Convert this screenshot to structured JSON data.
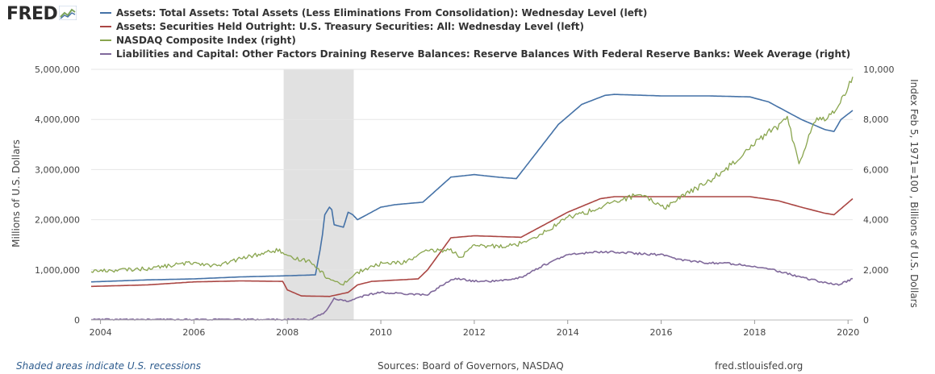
{
  "header": {
    "logo_text": "FRED"
  },
  "footer": {
    "recession_note": "Shaded areas indicate U.S. recessions",
    "sources": "Sources: Board of Governors, NASDAQ",
    "site": "fred.stlouisfed.org"
  },
  "colors": {
    "total_assets": "#4572a7",
    "treasury": "#aa4643",
    "nasdaq": "#89a54e",
    "reserves": "#80699b",
    "recession": "#e1e1e1",
    "grid": "#e6e6e6"
  },
  "chart_data": {
    "type": "line",
    "title": "",
    "xlabel": "",
    "ylabel_left": "Millions of U.S. Dollars",
    "ylabel_right": "Index Feb 5, 1971=100 , Billions of U.S. Dollars",
    "xlim": [
      2003.8,
      2020.1
    ],
    "ylim_left": [
      0,
      5000000
    ],
    "ylim_right": [
      0,
      10000
    ],
    "x_ticks": [
      "2004",
      "2006",
      "2008",
      "2010",
      "2012",
      "2014",
      "2016",
      "2018",
      "2020"
    ],
    "y_ticks_left": [
      "0",
      "1,000,000",
      "2,000,000",
      "3,000,000",
      "4,000,000",
      "5,000,000"
    ],
    "y_ticks_right": [
      "0",
      "2,000",
      "4,000",
      "6,000",
      "8,000",
      "10,000"
    ],
    "grid": true,
    "legend_position": "top",
    "recessions": [
      [
        2007.92,
        2009.42
      ]
    ],
    "series": [
      {
        "name": "Assets: Total Assets: Total Assets (Less Eliminations From Consolidation): Wednesday Level (left)",
        "axis": "left",
        "x": [
          2003.8,
          2005,
          2006,
          2007,
          2007.9,
          2008.6,
          2008.7,
          2008.75,
          2008.8,
          2008.9,
          2008.95,
          2009.0,
          2009.2,
          2009.3,
          2009.4,
          2009.5,
          2009.7,
          2010.0,
          2010.3,
          2010.9,
          2011.5,
          2012.0,
          2012.5,
          2012.9,
          2013.3,
          2013.8,
          2014.3,
          2014.8,
          2015.0,
          2016.0,
          2017.0,
          2017.9,
          2018.3,
          2019.0,
          2019.5,
          2019.7,
          2019.85,
          2020.1
        ],
        "y": [
          760000,
          800000,
          820000,
          860000,
          880000,
          900000,
          1400000,
          1700000,
          2100000,
          2250000,
          2200000,
          1900000,
          1850000,
          2150000,
          2100000,
          2000000,
          2100000,
          2250000,
          2300000,
          2350000,
          2850000,
          2900000,
          2850000,
          2820000,
          3300000,
          3900000,
          4300000,
          4480000,
          4500000,
          4470000,
          4470000,
          4450000,
          4350000,
          4000000,
          3800000,
          3760000,
          4000000,
          4180000
        ]
      },
      {
        "name": "Assets: Securities Held Outright: U.S. Treasury Securities: All: Wednesday Level (left)",
        "axis": "left",
        "x": [
          2003.8,
          2005,
          2006,
          2007,
          2007.9,
          2008.0,
          2008.3,
          2008.9,
          2009.3,
          2009.5,
          2009.8,
          2010.0,
          2010.8,
          2011.0,
          2011.5,
          2012.0,
          2013.0,
          2014.0,
          2014.7,
          2015.0,
          2017.9,
          2018.5,
          2019.0,
          2019.5,
          2019.7,
          2020.1
        ],
        "y": [
          670000,
          700000,
          760000,
          780000,
          770000,
          600000,
          480000,
          470000,
          550000,
          700000,
          770000,
          780000,
          820000,
          1000000,
          1640000,
          1680000,
          1650000,
          2150000,
          2420000,
          2460000,
          2460000,
          2380000,
          2250000,
          2130000,
          2100000,
          2420000
        ]
      },
      {
        "name": "NASDAQ Composite Index (right)",
        "axis": "right",
        "x": [
          2003.8,
          2004.5,
          2005.0,
          2006.0,
          2006.5,
          2007.0,
          2007.8,
          2008.0,
          2008.5,
          2008.9,
          2009.2,
          2009.5,
          2010.0,
          2010.5,
          2011.0,
          2011.5,
          2011.7,
          2012.0,
          2012.5,
          2012.9,
          2013.5,
          2014.0,
          2014.5,
          2015.0,
          2015.5,
          2016.1,
          2016.5,
          2017.0,
          2017.5,
          2018.0,
          2018.7,
          2018.95,
          2019.3,
          2019.6,
          2019.9,
          2020.1
        ],
        "y": [
          1950,
          2000,
          2050,
          2300,
          2150,
          2450,
          2800,
          2500,
          2350,
          1600,
          1450,
          1900,
          2250,
          2300,
          2750,
          2800,
          2500,
          2950,
          2950,
          3000,
          3500,
          4100,
          4350,
          4700,
          5000,
          4500,
          5000,
          5500,
          6200,
          7100,
          8000,
          6300,
          8000,
          8100,
          8900,
          9700
        ]
      },
      {
        "name": "Liabilities and Capital: Other Factors Draining Reserve Balances: Reserve Balances With Federal Reserve Banks: Week Average (right)",
        "axis": "right",
        "x": [
          2003.8,
          2008.5,
          2008.8,
          2009.0,
          2009.3,
          2009.7,
          2010.0,
          2010.5,
          2011.0,
          2011.4,
          2011.6,
          2012.0,
          2012.5,
          2013.0,
          2013.5,
          2014.0,
          2014.5,
          2015.0,
          2015.5,
          2016.0,
          2016.5,
          2017.0,
          2017.5,
          2018.0,
          2018.5,
          2019.0,
          2019.5,
          2019.8,
          2020.1
        ],
        "y": [
          20,
          20,
          300,
          850,
          750,
          1000,
          1100,
          1050,
          1000,
          1500,
          1650,
          1550,
          1550,
          1700,
          2200,
          2600,
          2700,
          2720,
          2650,
          2600,
          2380,
          2280,
          2250,
          2150,
          1950,
          1700,
          1500,
          1400,
          1650
        ]
      }
    ]
  }
}
